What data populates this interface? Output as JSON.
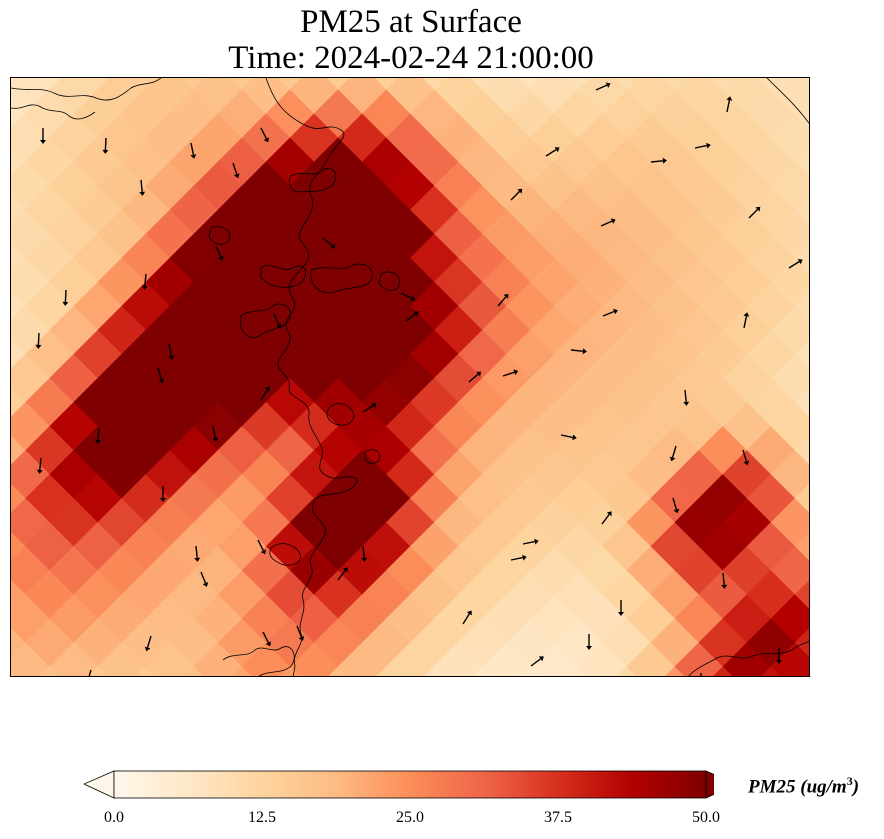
{
  "title": {
    "line1": "PM25 at Surface",
    "line2": "Time: 2024-02-24 21:00:00"
  },
  "colorbar": {
    "label": "PM25 (ug/m",
    "label_exponent": "3",
    "label_close": ")",
    "min": 0.0,
    "max": 50.0,
    "ticks": [
      "0.0",
      "12.5",
      "25.0",
      "37.5",
      "50.0"
    ],
    "extend": "both",
    "colormap": "OrRd",
    "colors": [
      "#fff7ec",
      "#fee8c8",
      "#fdd49e",
      "#fdbb84",
      "#fc8d59",
      "#ef6548",
      "#d7301f",
      "#b30000",
      "#7f0000"
    ]
  },
  "map": {
    "field": "PM25",
    "level": "Surface",
    "features": [
      "coastline",
      "wind-vectors"
    ],
    "hotspots": [
      {
        "name": "northwest-plume",
        "peak_value": 50
      },
      {
        "name": "central-south-cluster",
        "peak_value": 48
      },
      {
        "name": "east-cluster",
        "peak_value": 47
      },
      {
        "name": "southeast-corner",
        "peak_value": 45
      }
    ]
  }
}
